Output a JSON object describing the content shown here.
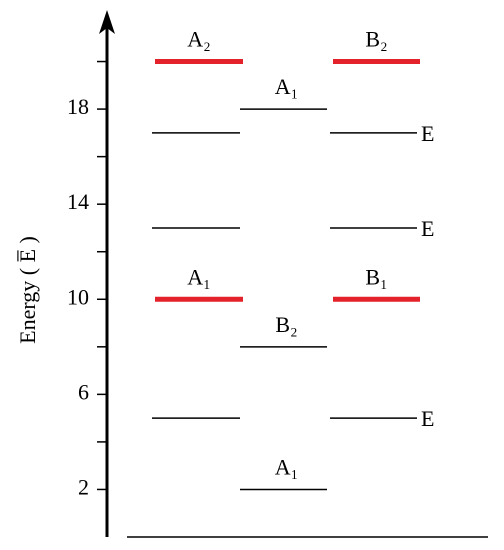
{
  "chart_data": {
    "type": "energy-levels",
    "ylabel": "Energy ( E̅ )",
    "ylim": [
      0,
      22
    ],
    "yticks": [
      2,
      6,
      10,
      14,
      18
    ],
    "minor_yticks": [
      4,
      8,
      12,
      16,
      20
    ],
    "columns": [
      {
        "levels": [
          {
            "value": 20,
            "color": "#e3222b",
            "label": "A₂"
          },
          {
            "value": 17,
            "color": "#000000"
          },
          {
            "value": 13,
            "color": "#000000"
          },
          {
            "value": 10,
            "color": "#e3222b",
            "label": "A₁"
          },
          {
            "value": 5,
            "color": "#000000"
          }
        ]
      },
      {
        "levels": [
          {
            "value": 18,
            "color": "#000000",
            "label": "A₁"
          },
          {
            "value": 8,
            "color": "#000000",
            "label": "B₂"
          },
          {
            "value": 2,
            "color": "#000000",
            "label": "A₁"
          }
        ]
      },
      {
        "levels": [
          {
            "value": 20,
            "color": "#e3222b",
            "label": "B₂"
          },
          {
            "value": 17,
            "color": "#000000",
            "side_label": "E"
          },
          {
            "value": 13,
            "color": "#000000",
            "side_label": "E"
          },
          {
            "value": 10,
            "color": "#e3222b",
            "label": "B₁"
          },
          {
            "value": 5,
            "color": "#000000",
            "side_label": "E"
          }
        ]
      }
    ]
  }
}
